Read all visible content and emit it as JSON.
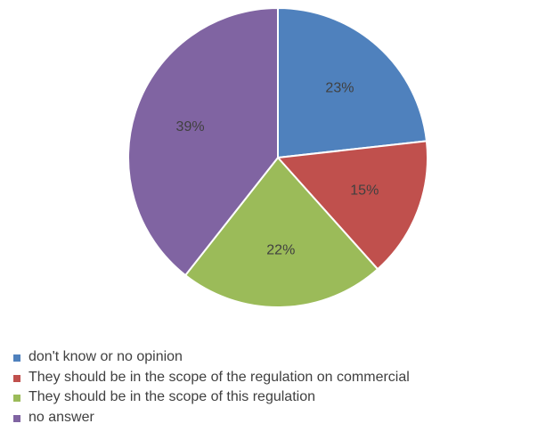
{
  "chart_data": {
    "type": "pie",
    "title": "",
    "slices": [
      {
        "label": "don't know or no opinion",
        "value": 23,
        "display": "23%",
        "color": "#4F81BD"
      },
      {
        "label": "They should be in the scope of the regulation on commercial",
        "value": 15,
        "display": "15%",
        "color": "#C0504D"
      },
      {
        "label": "They should be in the scope of this regulation",
        "value": 22,
        "display": "22%",
        "color": "#9BBB59"
      },
      {
        "label": "no answer",
        "value": 39,
        "display": "39%",
        "color": "#8064A2"
      }
    ],
    "legend_position": "bottom-left"
  }
}
